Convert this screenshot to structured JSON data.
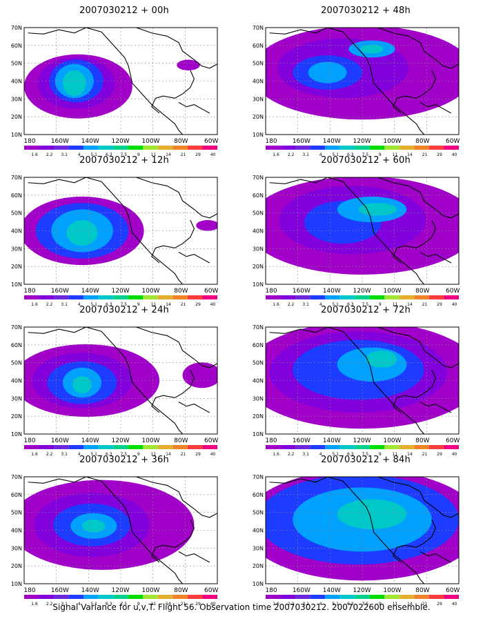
{
  "footer": "Signal Variance for u,v,T. Flight 56. Observation time 2007030212. 2007022600 ensemble.",
  "lat_labels": [
    "70N",
    "60N",
    "50N",
    "40N",
    "30N",
    "20N",
    "10N"
  ],
  "lon_labels": [
    "180",
    "160W",
    "140W",
    "120W",
    "100W",
    "80W",
    "60W"
  ],
  "scale_labels": [
    "1.6",
    "2.2",
    "3.1",
    "4",
    "5.1",
    "6.3",
    "7.5",
    "9",
    "11",
    "14",
    "21",
    "29",
    "40"
  ],
  "scale_colors": [
    "#a000c8",
    "#8200dc",
    "#6e28dc",
    "#1e3cff",
    "#00a0ff",
    "#00c8c8",
    "#00d28c",
    "#00dc00",
    "#a0e632",
    "#e6af2d",
    "#f08228",
    "#fa3c3c",
    "#f00082"
  ],
  "shade_colors": {
    "purple": "#a000c8",
    "violet": "#8200dc",
    "indigo": "#6e28dc",
    "blue": "#1e3cff",
    "lightblue": "#00a0ff",
    "teal": "#00c8c8",
    "green": "#00d28c"
  },
  "panels": [
    {
      "title": "2007030212 + 00h"
    },
    {
      "title": "2007030212 + 12h"
    },
    {
      "title": "2007030212 + 24h"
    },
    {
      "title": "2007030212 + 36h"
    },
    {
      "title": "2007030212 + 48h"
    },
    {
      "title": "2007030212 + 60h"
    },
    {
      "title": "2007030212 + 72h"
    },
    {
      "title": "2007030212 + 84h"
    }
  ]
}
